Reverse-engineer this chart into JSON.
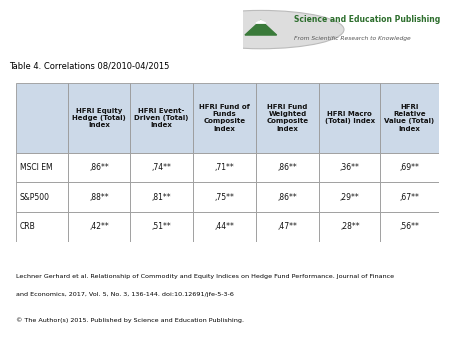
{
  "title": "Table 4. Correlations 08/2010-04/2015",
  "col_headers": [
    "HFRI Equity\nHedge (Total)\nIndex",
    "HFRI Event-\nDriven (Total)\nIndex",
    "HFRI Fund of\nFunds\nComposite\nIndex",
    "HFRI Fund\nWeighted\nComposite\nIndex",
    "HFRI Macro\n(Total) Index",
    "HFRI\nRelative\nValue (Total)\nIndex"
  ],
  "row_headers": [
    "MSCI EM",
    "S&P500",
    "CRB"
  ],
  "data": [
    [
      ",86**",
      ",74**",
      ",71**",
      ",86**",
      ",36**",
      ",69**"
    ],
    [
      ",88**",
      ",81**",
      ",75**",
      ",86**",
      ",29**",
      ",67**"
    ],
    [
      ",42**",
      ",51**",
      ",44**",
      ",47**",
      ",28**",
      ",56**"
    ]
  ],
  "header_bg": "#ccd9e8",
  "data_bg": "#ffffff",
  "border_color": "#999999",
  "footer_line1": "Lechner Gerhard et al. Relationship of Commodity and Equity Indices on Hedge Fund Performance. Journal of Finance",
  "footer_line2": "and Economics, 2017, Vol. 5, No. 3, 136-144. doi:10.12691/jfe-5-3-6",
  "footer_line3": "© The Author(s) 2015. Published by Science and Education Publishing.",
  "publisher_name": "Science and Education Publishing",
  "publisher_sub": "From Scientific Research to Knowledge",
  "publisher_name_color": "#2d6e2d",
  "publisher_sub_color": "#555555",
  "logo_circle_color": "#dddddd",
  "logo_mountain_color": "#3a7a3a"
}
